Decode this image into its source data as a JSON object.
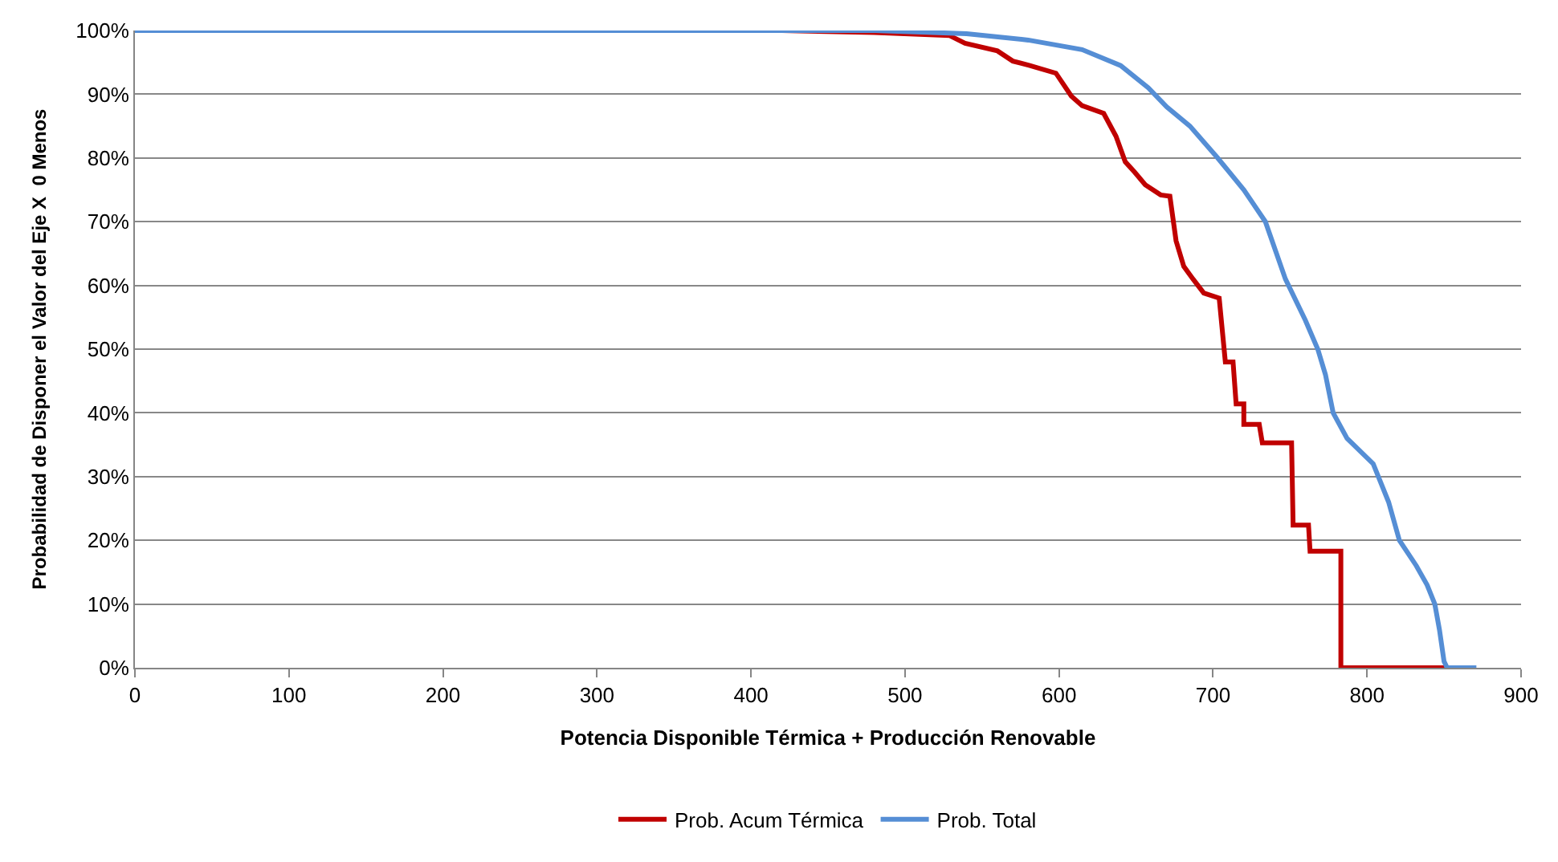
{
  "chart_data": {
    "type": "line",
    "xlabel": "Potencia Disponible Térmica + Producción Renovable",
    "ylabel": "Probabilidad de Disponer el Valor del Eje X  0 Menos",
    "xlim": [
      0,
      900
    ],
    "xticks": [
      0,
      100,
      200,
      300,
      400,
      500,
      600,
      700,
      800,
      900
    ],
    "ylim": [
      0,
      100
    ],
    "yticks": [
      {
        "value": 0,
        "label": "0%"
      },
      {
        "value": 10,
        "label": "10%"
      },
      {
        "value": 20,
        "label": "20%"
      },
      {
        "value": 30,
        "label": "30%"
      },
      {
        "value": 40,
        "label": "40%"
      },
      {
        "value": 50,
        "label": "50%"
      },
      {
        "value": 60,
        "label": "60%"
      },
      {
        "value": 70,
        "label": "70%"
      },
      {
        "value": 80,
        "label": "80%"
      },
      {
        "value": 90,
        "label": "90%"
      },
      {
        "value": 100,
        "label": "100%"
      }
    ],
    "grid": "y",
    "legend": "bottom",
    "line_style": "solid",
    "series": [
      {
        "name": "Prob. Acum Térmica",
        "color": "#c00000",
        "x": [
          0,
          420,
          480,
          529,
          539,
          560,
          570,
          581,
          598,
          608,
          615,
          629,
          637,
          643,
          649,
          656,
          666,
          672,
          676,
          681,
          687,
          694,
          704,
          708,
          713,
          715,
          720,
          720,
          730,
          732,
          751,
          752,
          762,
          763,
          783,
          783,
          851
        ],
        "values": [
          100,
          100,
          99.7,
          99.2,
          98,
          96.8,
          95.2,
          94.5,
          93.3,
          89.7,
          88.2,
          87,
          83.4,
          79.4,
          77.8,
          75.8,
          74.2,
          74,
          67,
          63,
          61,
          58.8,
          58,
          48,
          48,
          41.4,
          41.4,
          38.2,
          38.2,
          35.3,
          35.3,
          22.4,
          22.4,
          18.3,
          18.3,
          0,
          0
        ]
      },
      {
        "name": "Prob. Total",
        "color": "#558ed5",
        "x": [
          0,
          480,
          540,
          580,
          615,
          640,
          658,
          670,
          685,
          703,
          720,
          734,
          747,
          760,
          768,
          773,
          778,
          787,
          804,
          814,
          821,
          832,
          839,
          844,
          847,
          850,
          852,
          871
        ],
        "values": [
          100,
          100,
          99.5,
          98.5,
          97,
          94.5,
          91,
          88,
          85,
          80,
          75,
          70,
          61,
          54.5,
          50,
          46,
          40,
          36,
          32,
          26,
          20,
          16,
          13,
          10,
          6,
          1,
          0,
          0
        ]
      }
    ]
  }
}
